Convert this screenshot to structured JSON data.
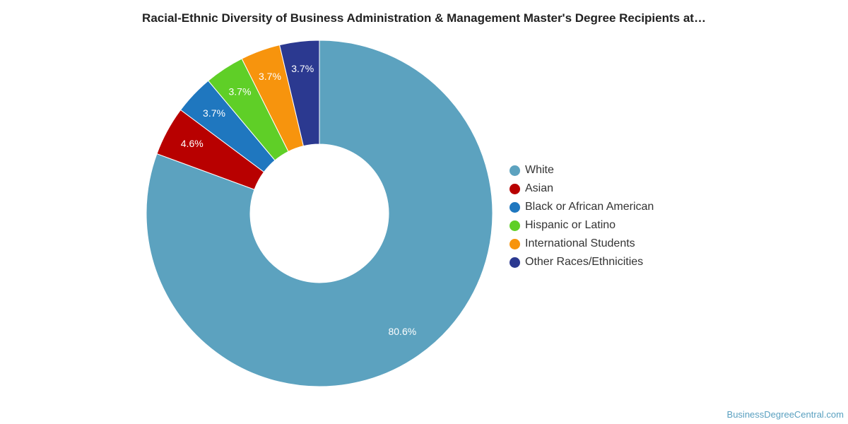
{
  "chart_data": {
    "type": "pie",
    "title": "Racial-Ethnic Diversity of Business Administration & Management Master's Degree Recipients at…",
    "hole": "donut",
    "legend_position": "right",
    "categories": [
      "White",
      "Asian",
      "Black or African American",
      "Hispanic or Latino",
      "International Students",
      "Other Races/Ethnicities"
    ],
    "values": [
      80.6,
      4.6,
      3.7,
      3.7,
      3.7,
      3.7
    ],
    "data_labels": [
      "80.6%",
      "4.6%",
      "3.7%",
      "3.7%",
      "3.7%",
      "3.7%"
    ],
    "colors": [
      "#5ca2bf",
      "#b80000",
      "#1f77bf",
      "#5fcf27",
      "#f7940d",
      "#2b3990"
    ]
  },
  "legend": {
    "items": [
      {
        "label": "White",
        "color": "#5ca2bf"
      },
      {
        "label": "Asian",
        "color": "#b80000"
      },
      {
        "label": "Black or African American",
        "color": "#1f77bf"
      },
      {
        "label": "Hispanic or Latino",
        "color": "#5fcf27"
      },
      {
        "label": "International Students",
        "color": "#f7940d"
      },
      {
        "label": "Other Races/Ethnicities",
        "color": "#2b3990"
      }
    ]
  },
  "credit": "BusinessDegreeCentral.com"
}
